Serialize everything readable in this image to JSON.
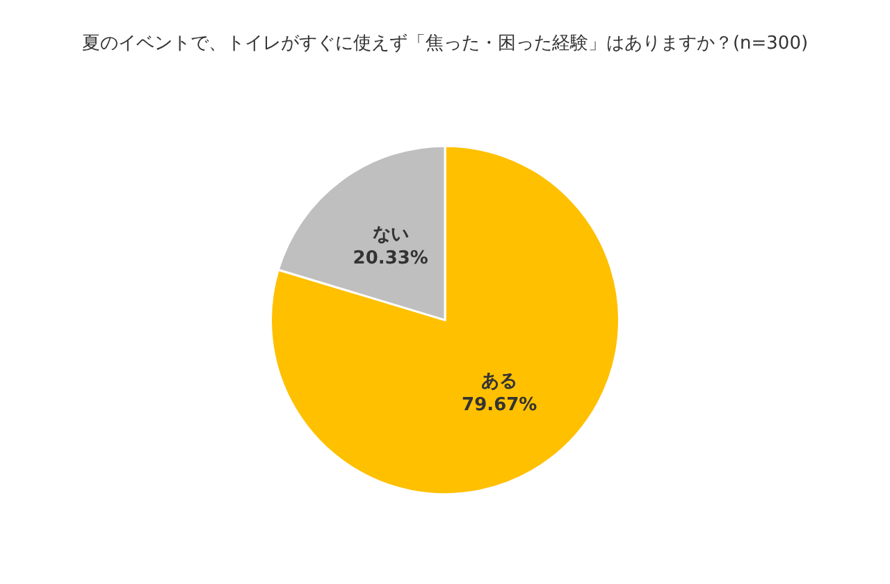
{
  "chart_data": {
    "type": "pie",
    "title": "夏のイベントで、トイレがすぐに使えず「焦った・困った経験」はありますか？(n=300)",
    "categories": [
      "ある",
      "ない"
    ],
    "values": [
      79.67,
      20.33
    ],
    "colors": [
      "#ffc000",
      "#bfbfbf"
    ],
    "value_labels": [
      "79.67%",
      "20.33%"
    ],
    "legend": false
  }
}
